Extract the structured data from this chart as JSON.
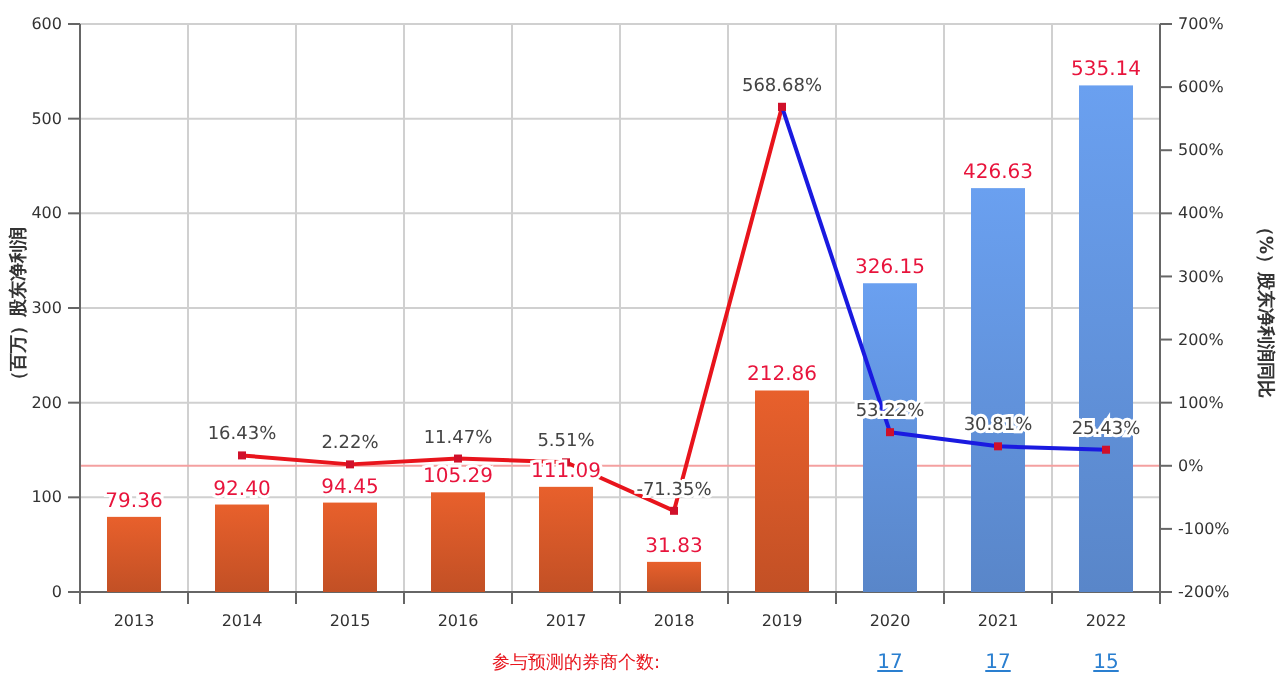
{
  "chart_data": {
    "type": "bar",
    "ylabel": "（百万）股东净利润",
    "y2label": "（%）股东净利润同比",
    "categories": [
      "2013",
      "2014",
      "2015",
      "2016",
      "2017",
      "2018",
      "2019",
      "2020",
      "2021",
      "2022"
    ],
    "series": [
      {
        "colors": [
          "#e8602c",
          "#e8602c",
          "#e8602c",
          "#e8602c",
          "#e8602c",
          "#e8602c",
          "#e8602c",
          "#6aa0f0",
          "#6aa0f0",
          "#6aa0f0"
        ],
        "values": [
          79.36,
          92.4,
          94.45,
          105.29,
          111.09,
          31.83,
          212.86,
          326.15,
          426.63,
          535.14
        ],
        "value_labels": [
          "79.36",
          "92.40",
          "94.45",
          "105.29",
          "111.09",
          "31.83",
          "212.86",
          "326.15",
          "426.63",
          "535.14"
        ]
      },
      {
        "type": "line",
        "axis": "y2",
        "color": "#e8141c",
        "values": [
          null,
          16.43,
          2.22,
          11.47,
          5.51,
          -71.35,
          568.68,
          null,
          null,
          null
        ],
        "value_labels": [
          null,
          "16.43%",
          "2.22%",
          "11.47%",
          "5.51%",
          "-71.35%",
          "568.68%",
          null,
          null,
          null
        ]
      },
      {
        "type": "line",
        "axis": "y2",
        "color": "#1a1ae0",
        "values": [
          null,
          null,
          null,
          null,
          null,
          null,
          568.68,
          53.22,
          30.81,
          25.43
        ],
        "value_labels": [
          null,
          null,
          null,
          null,
          null,
          null,
          null,
          "53.22%",
          "30.81%",
          "25.43%"
        ]
      }
    ],
    "ylim": [
      0,
      600
    ],
    "yticks": [
      0,
      100,
      200,
      300,
      400,
      500,
      600
    ],
    "y2lim": [
      -200,
      700
    ],
    "y2ticks": [
      {
        "value": -200,
        "label": "-200%"
      },
      {
        "value": -100,
        "label": "-100%"
      },
      {
        "value": 0,
        "label": "0%"
      },
      {
        "value": 100,
        "label": "100%"
      },
      {
        "value": 200,
        "label": "200%"
      },
      {
        "value": 300,
        "label": "300%"
      },
      {
        "value": 400,
        "label": "400%"
      },
      {
        "value": 500,
        "label": "500%"
      },
      {
        "value": 600,
        "label": "600%"
      },
      {
        "value": 700,
        "label": "700%"
      }
    ],
    "ref_lines": [
      {
        "axis": "y2",
        "value": 0,
        "color": "#f4a0a0"
      }
    ],
    "grid": true,
    "marker": "square",
    "annotations": [
      "参与预测的券商个数:",
      "17",
      "17",
      "15"
    ]
  }
}
